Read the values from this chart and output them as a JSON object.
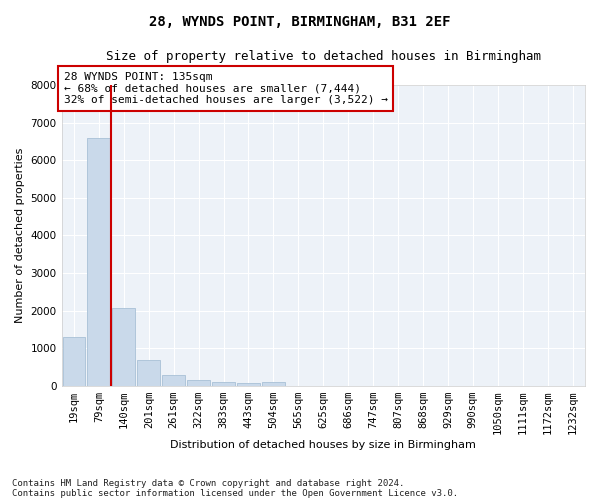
{
  "title": "28, WYNDS POINT, BIRMINGHAM, B31 2EF",
  "subtitle": "Size of property relative to detached houses in Birmingham",
  "xlabel": "Distribution of detached houses by size in Birmingham",
  "ylabel": "Number of detached properties",
  "footnote1": "Contains HM Land Registry data © Crown copyright and database right 2024.",
  "footnote2": "Contains public sector information licensed under the Open Government Licence v3.0.",
  "annotation_title": "28 WYNDS POINT: 135sqm",
  "annotation_line1": "← 68% of detached houses are smaller (7,444)",
  "annotation_line2": "32% of semi-detached houses are larger (3,522) →",
  "categories": [
    "19sqm",
    "79sqm",
    "140sqm",
    "201sqm",
    "261sqm",
    "322sqm",
    "383sqm",
    "443sqm",
    "504sqm",
    "565sqm",
    "625sqm",
    "686sqm",
    "747sqm",
    "807sqm",
    "868sqm",
    "929sqm",
    "990sqm",
    "1050sqm",
    "1111sqm",
    "1172sqm",
    "1232sqm"
  ],
  "values": [
    1300,
    6600,
    2080,
    680,
    290,
    155,
    100,
    65,
    100,
    0,
    0,
    0,
    0,
    0,
    0,
    0,
    0,
    0,
    0,
    0,
    0
  ],
  "bar_color": "#c9d9ea",
  "bar_edge_color": "#a8c0d6",
  "vline_color": "#cc0000",
  "annotation_box_color": "#cc0000",
  "background_color": "#edf2f8",
  "ylim": [
    0,
    8000
  ],
  "yticks": [
    0,
    1000,
    2000,
    3000,
    4000,
    5000,
    6000,
    7000,
    8000
  ],
  "title_fontsize": 10,
  "subtitle_fontsize": 9,
  "axis_label_fontsize": 8,
  "tick_fontsize": 7.5,
  "annotation_fontsize": 8
}
